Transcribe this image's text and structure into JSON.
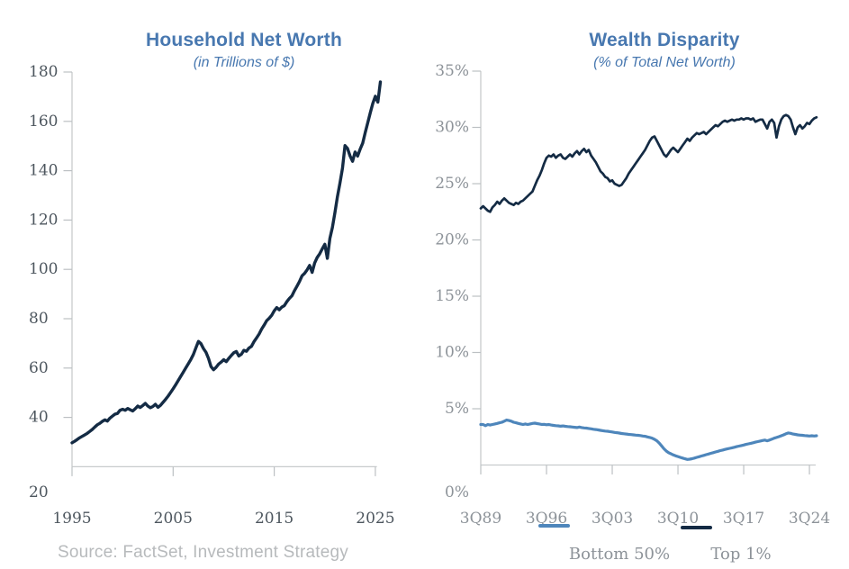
{
  "source": "Source: FactSet, Investment Strategy",
  "colors": {
    "title_blue": "#4878b0",
    "navy": "#142b44",
    "steel_blue": "#4e86bb",
    "axis_gray": "#c8cbcd",
    "tick_gray": "#bcc0c3",
    "left_tick_label": "#4d565e",
    "right_tick_label": "#8d9399",
    "legend_gray": "#8d9399",
    "source_gray": "#b7babc"
  },
  "chart_data": [
    {
      "type": "line",
      "title": "Household Net Worth",
      "subtitle": "(in Trillions of $)",
      "xlabel": "",
      "ylabel": "",
      "ylim": [
        20,
        180
      ],
      "grid": false,
      "x_start": 1995,
      "x_step": 0.25,
      "xticks": [
        {
          "t": 1995,
          "label": "1995"
        },
        {
          "t": 2005,
          "label": "2005"
        },
        {
          "t": 2015,
          "label": "2015"
        },
        {
          "t": 2025,
          "label": "2025"
        }
      ],
      "yticks": [
        {
          "value": 180,
          "label": "180"
        },
        {
          "value": 160,
          "label": "160"
        },
        {
          "value": 140,
          "label": "140"
        },
        {
          "value": 120,
          "label": "120"
        },
        {
          "value": 100,
          "label": "100"
        },
        {
          "value": 80,
          "label": "80"
        },
        {
          "value": 60,
          "label": "60"
        },
        {
          "value": 40,
          "label": "40"
        },
        {
          "value": 20,
          "label": "20"
        }
      ],
      "series": [
        {
          "name": "Household Net Worth",
          "color": "#142b44",
          "values": [
            29.7,
            30.3,
            31.0,
            31.7,
            32.3,
            32.9,
            33.5,
            34.3,
            35.1,
            36.1,
            37.0,
            37.6,
            38.4,
            39.0,
            38.5,
            39.7,
            40.5,
            41.3,
            41.6,
            42.9,
            43.3,
            42.9,
            43.6,
            43.1,
            42.6,
            43.5,
            44.6,
            44.0,
            44.8,
            45.7,
            44.6,
            43.9,
            44.4,
            45.3,
            44.1,
            44.9,
            46.1,
            47.3,
            48.6,
            50.1,
            51.6,
            53.2,
            54.9,
            56.6,
            58.3,
            60.0,
            61.7,
            63.5,
            65.5,
            68.2,
            70.8,
            69.9,
            67.9,
            66.4,
            63.9,
            60.6,
            59.3,
            60.3,
            61.6,
            62.4,
            63.4,
            62.6,
            63.9,
            65.1,
            66.2,
            66.7,
            64.9,
            65.6,
            67.2,
            66.8,
            68.1,
            68.8,
            70.7,
            72.2,
            73.8,
            75.8,
            77.4,
            79.2,
            80.2,
            81.4,
            83.2,
            84.5,
            83.6,
            84.7,
            85.3,
            86.9,
            88.2,
            89.3,
            91.4,
            93.2,
            95.1,
            97.4,
            98.4,
            99.8,
            101.6,
            98.8,
            102.6,
            104.8,
            106.3,
            108.3,
            110.2,
            104.5,
            112.5,
            117.0,
            123.0,
            129.5,
            135.0,
            141.0,
            150.2,
            149.0,
            146.0,
            143.8,
            147.6,
            145.9,
            148.8,
            151.2,
            155.5,
            159.5,
            163.5,
            167.3,
            170.2,
            167.8,
            176.0
          ]
        }
      ]
    },
    {
      "type": "line",
      "title": "Wealth Disparity",
      "subtitle": "(% of Total Net Worth)",
      "xlabel": "",
      "ylabel": "",
      "ylim": [
        0,
        35
      ],
      "grid": false,
      "x_start": 1989.75,
      "x_step": 0.25,
      "xticks": [
        {
          "t": 1989.75,
          "label": "3Q89"
        },
        {
          "t": 1996.75,
          "label": "3Q96"
        },
        {
          "t": 2003.75,
          "label": "3Q03"
        },
        {
          "t": 2010.75,
          "label": "3Q10"
        },
        {
          "t": 2017.75,
          "label": "3Q17"
        },
        {
          "t": 2024.75,
          "label": "3Q24"
        }
      ],
      "yticks": [
        {
          "value": 35,
          "label": "35%"
        },
        {
          "value": 30,
          "label": "30%"
        },
        {
          "value": 25,
          "label": "25%"
        },
        {
          "value": 20,
          "label": "20%"
        },
        {
          "value": 15,
          "label": "15%"
        },
        {
          "value": 10,
          "label": "10%"
        },
        {
          "value": 5,
          "label": "5%"
        },
        {
          "value": 0,
          "label": "0%"
        }
      ],
      "series": [
        {
          "name": "Top 1%",
          "color": "#142b44",
          "values": [
            22.8,
            23.0,
            22.8,
            22.6,
            22.5,
            22.9,
            23.1,
            23.4,
            23.2,
            23.5,
            23.7,
            23.5,
            23.3,
            23.2,
            23.1,
            23.3,
            23.2,
            23.4,
            23.5,
            23.7,
            23.9,
            24.1,
            24.3,
            24.8,
            25.3,
            25.7,
            26.2,
            26.8,
            27.3,
            27.5,
            27.4,
            27.6,
            27.3,
            27.5,
            27.6,
            27.3,
            27.2,
            27.4,
            27.6,
            27.4,
            27.7,
            27.9,
            27.6,
            27.9,
            28.1,
            27.8,
            28.0,
            27.5,
            27.2,
            26.9,
            26.5,
            26.1,
            25.9,
            25.6,
            25.5,
            25.2,
            25.3,
            25.0,
            24.9,
            24.8,
            24.9,
            25.2,
            25.5,
            25.9,
            26.2,
            26.5,
            26.8,
            27.1,
            27.4,
            27.7,
            28.0,
            28.4,
            28.8,
            29.1,
            29.2,
            28.8,
            28.4,
            28.0,
            27.6,
            27.4,
            27.7,
            28.0,
            28.2,
            28.0,
            27.8,
            28.1,
            28.4,
            28.7,
            29.0,
            28.8,
            29.1,
            29.3,
            29.5,
            29.4,
            29.5,
            29.6,
            29.4,
            29.6,
            29.8,
            30.0,
            30.2,
            30.1,
            30.3,
            30.5,
            30.6,
            30.5,
            30.6,
            30.7,
            30.6,
            30.7,
            30.7,
            30.8,
            30.7,
            30.8,
            30.8,
            30.7,
            30.8,
            30.5,
            30.6,
            30.7,
            30.7,
            30.3,
            29.9,
            30.5,
            30.7,
            30.4,
            29.1,
            30.1,
            30.7,
            31.0,
            31.1,
            31.0,
            30.7,
            30.0,
            29.4,
            30.0,
            30.2,
            29.9,
            30.1,
            30.4,
            30.3,
            30.6,
            30.8,
            30.9
          ]
        },
        {
          "name": "Bottom 50%",
          "color": "#4e86bb",
          "values": [
            3.6,
            3.6,
            3.5,
            3.6,
            3.55,
            3.6,
            3.65,
            3.7,
            3.75,
            3.8,
            3.9,
            4.0,
            3.95,
            3.9,
            3.8,
            3.75,
            3.7,
            3.65,
            3.6,
            3.65,
            3.6,
            3.65,
            3.7,
            3.72,
            3.68,
            3.65,
            3.6,
            3.62,
            3.58,
            3.6,
            3.55,
            3.52,
            3.5,
            3.48,
            3.45,
            3.47,
            3.44,
            3.42,
            3.4,
            3.38,
            3.35,
            3.33,
            3.38,
            3.33,
            3.3,
            3.28,
            3.25,
            3.22,
            3.18,
            3.15,
            3.12,
            3.08,
            3.05,
            3.02,
            3.0,
            2.97,
            2.94,
            2.9,
            2.87,
            2.84,
            2.8,
            2.78,
            2.75,
            2.72,
            2.7,
            2.68,
            2.66,
            2.64,
            2.62,
            2.58,
            2.55,
            2.5,
            2.45,
            2.38,
            2.28,
            2.15,
            1.95,
            1.7,
            1.45,
            1.25,
            1.1,
            1.0,
            0.9,
            0.82,
            0.75,
            0.68,
            0.62,
            0.55,
            0.5,
            0.52,
            0.56,
            0.62,
            0.68,
            0.74,
            0.8,
            0.86,
            0.92,
            0.98,
            1.04,
            1.1,
            1.16,
            1.22,
            1.28,
            1.33,
            1.38,
            1.43,
            1.48,
            1.53,
            1.58,
            1.63,
            1.68,
            1.73,
            1.78,
            1.83,
            1.88,
            1.93,
            1.98,
            2.03,
            2.08,
            2.13,
            2.18,
            2.22,
            2.15,
            2.22,
            2.3,
            2.38,
            2.45,
            2.52,
            2.6,
            2.68,
            2.78,
            2.85,
            2.82,
            2.75,
            2.72,
            2.68,
            2.66,
            2.64,
            2.62,
            2.6,
            2.58,
            2.6,
            2.58,
            2.6
          ]
        }
      ]
    }
  ]
}
